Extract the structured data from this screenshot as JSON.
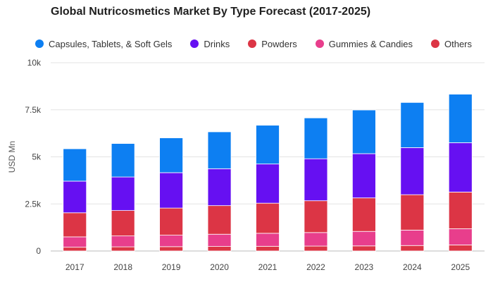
{
  "chart_data": {
    "type": "bar",
    "stacked": true,
    "title": "Global Nutricosmetics Market By Type Forecast (2017-2025)",
    "xlabel": "",
    "ylabel": "USD Mn",
    "ylim": [
      0,
      10000
    ],
    "yticks": [
      0,
      2500,
      5000,
      7500,
      10000
    ],
    "ytick_labels": [
      "0",
      "2.5k",
      "5k",
      "7.5k",
      "10k"
    ],
    "grid": true,
    "legend_position": "top",
    "categories": [
      "2017",
      "2018",
      "2019",
      "2020",
      "2021",
      "2022",
      "2023",
      "2024",
      "2025"
    ],
    "series": [
      {
        "name": "Others",
        "color": "#dc3545",
        "values": [
          200,
          220,
          230,
          240,
          250,
          260,
          270,
          290,
          320
        ]
      },
      {
        "name": "Gummies & Candies",
        "color": "#e83e8c",
        "values": [
          550,
          580,
          610,
          650,
          690,
          720,
          770,
          820,
          860
        ]
      },
      {
        "name": "Powders",
        "color": "#dc3545",
        "values": [
          1280,
          1350,
          1440,
          1520,
          1600,
          1690,
          1780,
          1880,
          1950
        ]
      },
      {
        "name": "Drinks",
        "color": "#6610f2",
        "values": [
          1680,
          1780,
          1880,
          1960,
          2080,
          2230,
          2350,
          2500,
          2620
        ]
      },
      {
        "name": "Capsules, Tablets, & Soft Gels",
        "color": "#0d7ff2",
        "values": [
          1720,
          1780,
          1850,
          1960,
          2060,
          2170,
          2320,
          2400,
          2580
        ]
      }
    ]
  },
  "legend": [
    {
      "label": "Capsules, Tablets, & Soft Gels",
      "color": "#0d7ff2"
    },
    {
      "label": "Drinks",
      "color": "#6610f2"
    },
    {
      "label": "Powders",
      "color": "#dc3545"
    },
    {
      "label": "Gummies & Candies",
      "color": "#e83e8c"
    },
    {
      "label": "Others",
      "color": "#dc3545"
    }
  ]
}
